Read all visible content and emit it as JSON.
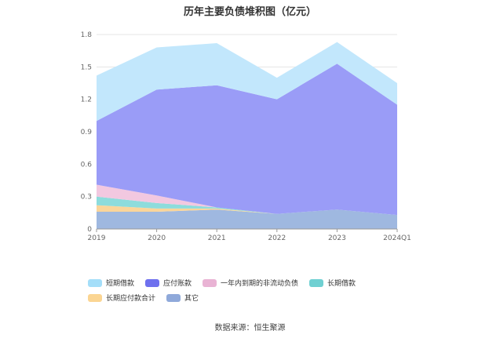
{
  "chart_data": {
    "type": "area",
    "stacked": true,
    "title": "历年主要负债堆积图（亿元）",
    "categories": [
      "2019",
      "2020",
      "2021",
      "2022",
      "2023",
      "2024Q1"
    ],
    "yticks": [
      "0",
      "0.3",
      "0.6",
      "0.9",
      "1.2",
      "1.5",
      "1.8"
    ],
    "ylim": [
      0,
      1.8
    ],
    "grid": true,
    "legend_position": "bottom",
    "series": [
      {
        "name": "其它",
        "color": "#9fb8e0",
        "values": [
          0.16,
          0.16,
          0.18,
          0.14,
          0.18,
          0.13
        ]
      },
      {
        "name": "长期应付款合计",
        "color": "#fad59a",
        "values": [
          0.06,
          0.03,
          0.01,
          0.0,
          0.0,
          0.0
        ]
      },
      {
        "name": "长期借款",
        "color": "#8ddcdc",
        "values": [
          0.08,
          0.05,
          0.01,
          0.0,
          0.0,
          0.0
        ]
      },
      {
        "name": "一年内到期的非流动负债",
        "color": "#f2c8e0",
        "values": [
          0.11,
          0.07,
          0.0,
          0.0,
          0.0,
          0.0
        ]
      },
      {
        "name": "应付账款",
        "color": "#9a9cf7",
        "values": [
          0.59,
          0.98,
          1.13,
          1.06,
          1.35,
          1.02
        ]
      },
      {
        "name": "短期借款",
        "color": "#c2e7fc",
        "values": [
          0.42,
          0.39,
          0.39,
          0.2,
          0.2,
          0.2
        ]
      }
    ]
  },
  "legend_items": [
    {
      "label": "短期借款",
      "color": "#a4def9"
    },
    {
      "label": "应付账款",
      "color": "#6e70ee"
    },
    {
      "label": "一年内到期的非流动负债",
      "color": "#e9b3d4"
    },
    {
      "label": "长期借款",
      "color": "#6fd0d2"
    },
    {
      "label": "长期应付款合计",
      "color": "#fbd592"
    },
    {
      "label": "其它",
      "color": "#8fa9da"
    }
  ],
  "source_text": "数据来源：恒生聚源"
}
